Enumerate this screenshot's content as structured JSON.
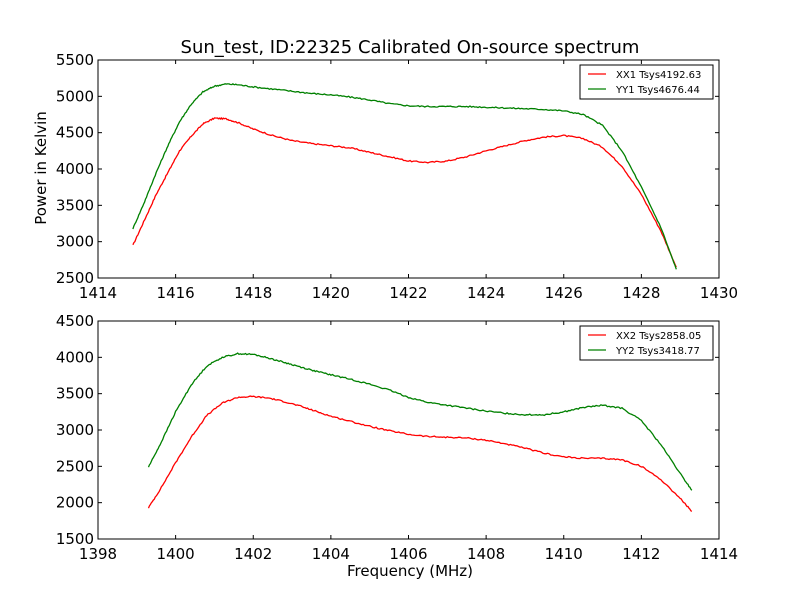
{
  "chart_data": [
    {
      "type": "line",
      "title": "Sun_test, ID:22325 Calibrated On-source spectrum",
      "xlabel": "",
      "ylabel": "Power in Kelvin",
      "xlim": [
        1414,
        1430
      ],
      "ylim": [
        2500,
        5500
      ],
      "xticks": [
        "1414",
        "1416",
        "1418",
        "1420",
        "1422",
        "1424",
        "1426",
        "1428",
        "1430"
      ],
      "yticks": [
        "2500",
        "3000",
        "3500",
        "4000",
        "4500",
        "5000",
        "5500"
      ],
      "legend_position": "top-right",
      "series": [
        {
          "name": "XX1 Tsys4192.63",
          "color": "#ff0000",
          "points": [
            [
              1414.9,
              2950
            ],
            [
              1415.2,
              3300
            ],
            [
              1415.5,
              3650
            ],
            [
              1415.8,
              3950
            ],
            [
              1416.1,
              4250
            ],
            [
              1416.4,
              4450
            ],
            [
              1416.7,
              4620
            ],
            [
              1417.0,
              4700
            ],
            [
              1417.3,
              4690
            ],
            [
              1417.6,
              4640
            ],
            [
              1418.0,
              4550
            ],
            [
              1418.5,
              4460
            ],
            [
              1419.0,
              4390
            ],
            [
              1419.5,
              4350
            ],
            [
              1420.0,
              4320
            ],
            [
              1420.5,
              4290
            ],
            [
              1421.0,
              4230
            ],
            [
              1421.5,
              4170
            ],
            [
              1422.0,
              4110
            ],
            [
              1422.5,
              4090
            ],
            [
              1423.0,
              4110
            ],
            [
              1423.5,
              4170
            ],
            [
              1424.0,
              4250
            ],
            [
              1424.5,
              4320
            ],
            [
              1425.0,
              4390
            ],
            [
              1425.5,
              4440
            ],
            [
              1426.0,
              4460
            ],
            [
              1426.5,
              4420
            ],
            [
              1427.0,
              4300
            ],
            [
              1427.5,
              4040
            ],
            [
              1428.0,
              3650
            ],
            [
              1428.5,
              3150
            ],
            [
              1428.9,
              2650
            ]
          ]
        },
        {
          "name": "YY1 Tsys4676.44",
          "color": "#008000",
          "points": [
            [
              1414.9,
              3180
            ],
            [
              1415.2,
              3550
            ],
            [
              1415.5,
              3950
            ],
            [
              1415.8,
              4320
            ],
            [
              1416.1,
              4650
            ],
            [
              1416.4,
              4890
            ],
            [
              1416.7,
              5060
            ],
            [
              1417.0,
              5140
            ],
            [
              1417.3,
              5170
            ],
            [
              1417.6,
              5160
            ],
            [
              1418.0,
              5130
            ],
            [
              1418.5,
              5100
            ],
            [
              1419.0,
              5070
            ],
            [
              1419.5,
              5040
            ],
            [
              1420.0,
              5020
            ],
            [
              1420.5,
              4990
            ],
            [
              1421.0,
              4950
            ],
            [
              1421.5,
              4900
            ],
            [
              1422.0,
              4870
            ],
            [
              1422.5,
              4860
            ],
            [
              1423.0,
              4860
            ],
            [
              1423.5,
              4860
            ],
            [
              1424.0,
              4850
            ],
            [
              1424.5,
              4840
            ],
            [
              1425.0,
              4830
            ],
            [
              1425.5,
              4820
            ],
            [
              1426.0,
              4800
            ],
            [
              1426.5,
              4750
            ],
            [
              1427.0,
              4600
            ],
            [
              1427.5,
              4250
            ],
            [
              1428.0,
              3750
            ],
            [
              1428.5,
              3200
            ],
            [
              1428.9,
              2620
            ]
          ]
        }
      ]
    },
    {
      "type": "line",
      "title": "",
      "xlabel": "Frequency (MHz)",
      "ylabel": "",
      "xlim": [
        1398,
        1414
      ],
      "ylim": [
        1500,
        4500
      ],
      "xticks": [
        "1398",
        "1400",
        "1402",
        "1404",
        "1406",
        "1408",
        "1410",
        "1412",
        "1414"
      ],
      "yticks": [
        "1500",
        "2000",
        "2500",
        "3000",
        "3500",
        "4000",
        "4500"
      ],
      "legend_position": "top-right",
      "series": [
        {
          "name": "XX2 Tsys2858.05",
          "color": "#ff0000",
          "points": [
            [
              1399.3,
              1930
            ],
            [
              1399.6,
              2180
            ],
            [
              1400.0,
              2550
            ],
            [
              1400.4,
              2900
            ],
            [
              1400.8,
              3200
            ],
            [
              1401.2,
              3370
            ],
            [
              1401.6,
              3450
            ],
            [
              1402.0,
              3460
            ],
            [
              1402.4,
              3440
            ],
            [
              1402.8,
              3390
            ],
            [
              1403.2,
              3330
            ],
            [
              1403.6,
              3260
            ],
            [
              1404.0,
              3190
            ],
            [
              1404.5,
              3120
            ],
            [
              1405.0,
              3050
            ],
            [
              1405.5,
              2990
            ],
            [
              1406.0,
              2940
            ],
            [
              1406.5,
              2910
            ],
            [
              1407.0,
              2900
            ],
            [
              1407.5,
              2890
            ],
            [
              1408.0,
              2860
            ],
            [
              1408.5,
              2810
            ],
            [
              1409.0,
              2750
            ],
            [
              1409.5,
              2680
            ],
            [
              1410.0,
              2630
            ],
            [
              1410.5,
              2610
            ],
            [
              1411.0,
              2610
            ],
            [
              1411.5,
              2590
            ],
            [
              1412.0,
              2500
            ],
            [
              1412.5,
              2320
            ],
            [
              1413.0,
              2060
            ],
            [
              1413.3,
              1880
            ]
          ]
        },
        {
          "name": "YY2 Tsys3418.77",
          "color": "#008000",
          "points": [
            [
              1399.3,
              2490
            ],
            [
              1399.6,
              2800
            ],
            [
              1400.0,
              3250
            ],
            [
              1400.4,
              3620
            ],
            [
              1400.8,
              3880
            ],
            [
              1401.2,
              4000
            ],
            [
              1401.6,
              4050
            ],
            [
              1402.0,
              4040
            ],
            [
              1402.4,
              3990
            ],
            [
              1402.8,
              3930
            ],
            [
              1403.2,
              3870
            ],
            [
              1403.6,
              3810
            ],
            [
              1404.0,
              3760
            ],
            [
              1404.5,
              3700
            ],
            [
              1405.0,
              3630
            ],
            [
              1405.5,
              3550
            ],
            [
              1406.0,
              3450
            ],
            [
              1406.5,
              3380
            ],
            [
              1407.0,
              3340
            ],
            [
              1407.5,
              3300
            ],
            [
              1408.0,
              3260
            ],
            [
              1408.5,
              3230
            ],
            [
              1409.0,
              3210
            ],
            [
              1409.5,
              3210
            ],
            [
              1410.0,
              3250
            ],
            [
              1410.5,
              3310
            ],
            [
              1411.0,
              3340
            ],
            [
              1411.5,
              3300
            ],
            [
              1412.0,
              3130
            ],
            [
              1412.5,
              2800
            ],
            [
              1413.0,
              2400
            ],
            [
              1413.3,
              2170
            ]
          ]
        }
      ]
    }
  ]
}
